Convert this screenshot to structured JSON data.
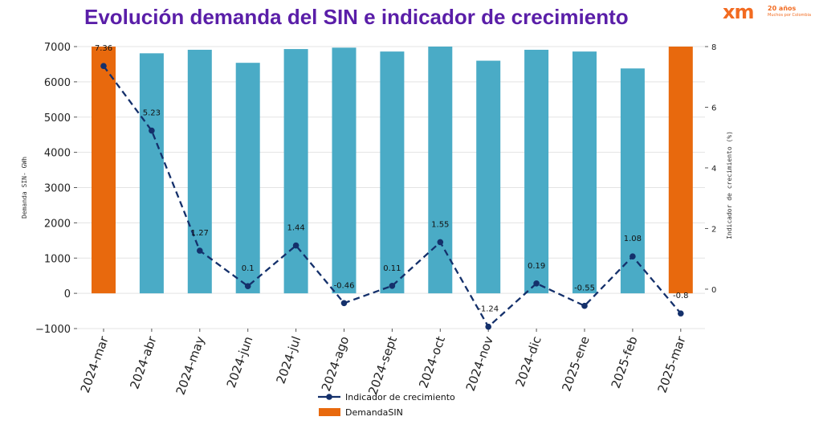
{
  "title": "Evolución demanda del SIN e indicador de crecimiento",
  "logo": {
    "mark": "xm",
    "line1": "20 años",
    "line2": "Muchos por Colombia"
  },
  "colors": {
    "title": "#5a1ea8",
    "bar_default": "#4aabc6",
    "bar_highlight": "#e8690d",
    "line": "#14306b",
    "logo": "#f26b21"
  },
  "chart_data": {
    "type": "bar",
    "title": "Evolución demanda del SIN e indicador de crecimiento",
    "categories": [
      "2024-mar",
      "2024-abr",
      "2024-may",
      "2024-jun",
      "2024-jul",
      "2024-ago",
      "2024-sept",
      "2024-oct",
      "2024-nov",
      "2024-dic",
      "2025-ene",
      "2025-feb",
      "2025-mar"
    ],
    "ylabel": "Demanda SIN- GWh",
    "ylabel_right": "Indicador de crecimiento (%)",
    "ylim": [
      -1000,
      7000
    ],
    "yticks": [
      -1000,
      0,
      1000,
      2000,
      3000,
      4000,
      5000,
      6000,
      7000
    ],
    "ytick_labels": [
      "−1000",
      "0",
      "1000",
      "2000",
      "3000",
      "4000",
      "5000",
      "6000",
      "7000"
    ],
    "y2lim": [
      -1.3,
      8
    ],
    "y2ticks": [
      0,
      2,
      4,
      6,
      8
    ],
    "grid": true,
    "legend_position": "bottom-center",
    "series": [
      {
        "name": "DemandaSIN",
        "type": "bar",
        "axis": "left",
        "values": [
          7000,
          6810,
          6910,
          6540,
          6930,
          6970,
          6860,
          7000,
          6600,
          6910,
          6860,
          6380,
          7000
        ],
        "colors": [
          "#e8690d",
          "#4aabc6",
          "#4aabc6",
          "#4aabc6",
          "#4aabc6",
          "#4aabc6",
          "#4aabc6",
          "#4aabc6",
          "#4aabc6",
          "#4aabc6",
          "#4aabc6",
          "#4aabc6",
          "#e8690d"
        ]
      },
      {
        "name": "Indicador de crecimiento",
        "type": "line",
        "style": "dashed",
        "axis": "right",
        "values": [
          7.36,
          5.23,
          1.27,
          0.1,
          1.44,
          -0.46,
          0.11,
          1.55,
          -1.24,
          0.19,
          -0.55,
          1.08,
          -0.8
        ],
        "labels": [
          "7.36",
          "5.23",
          "1.27",
          "0.1",
          "1.44",
          "-0.46",
          "0.11",
          "1.55",
          "-1.24",
          "0.19",
          "-0.55",
          "1.08",
          "-0.8"
        ]
      }
    ]
  }
}
